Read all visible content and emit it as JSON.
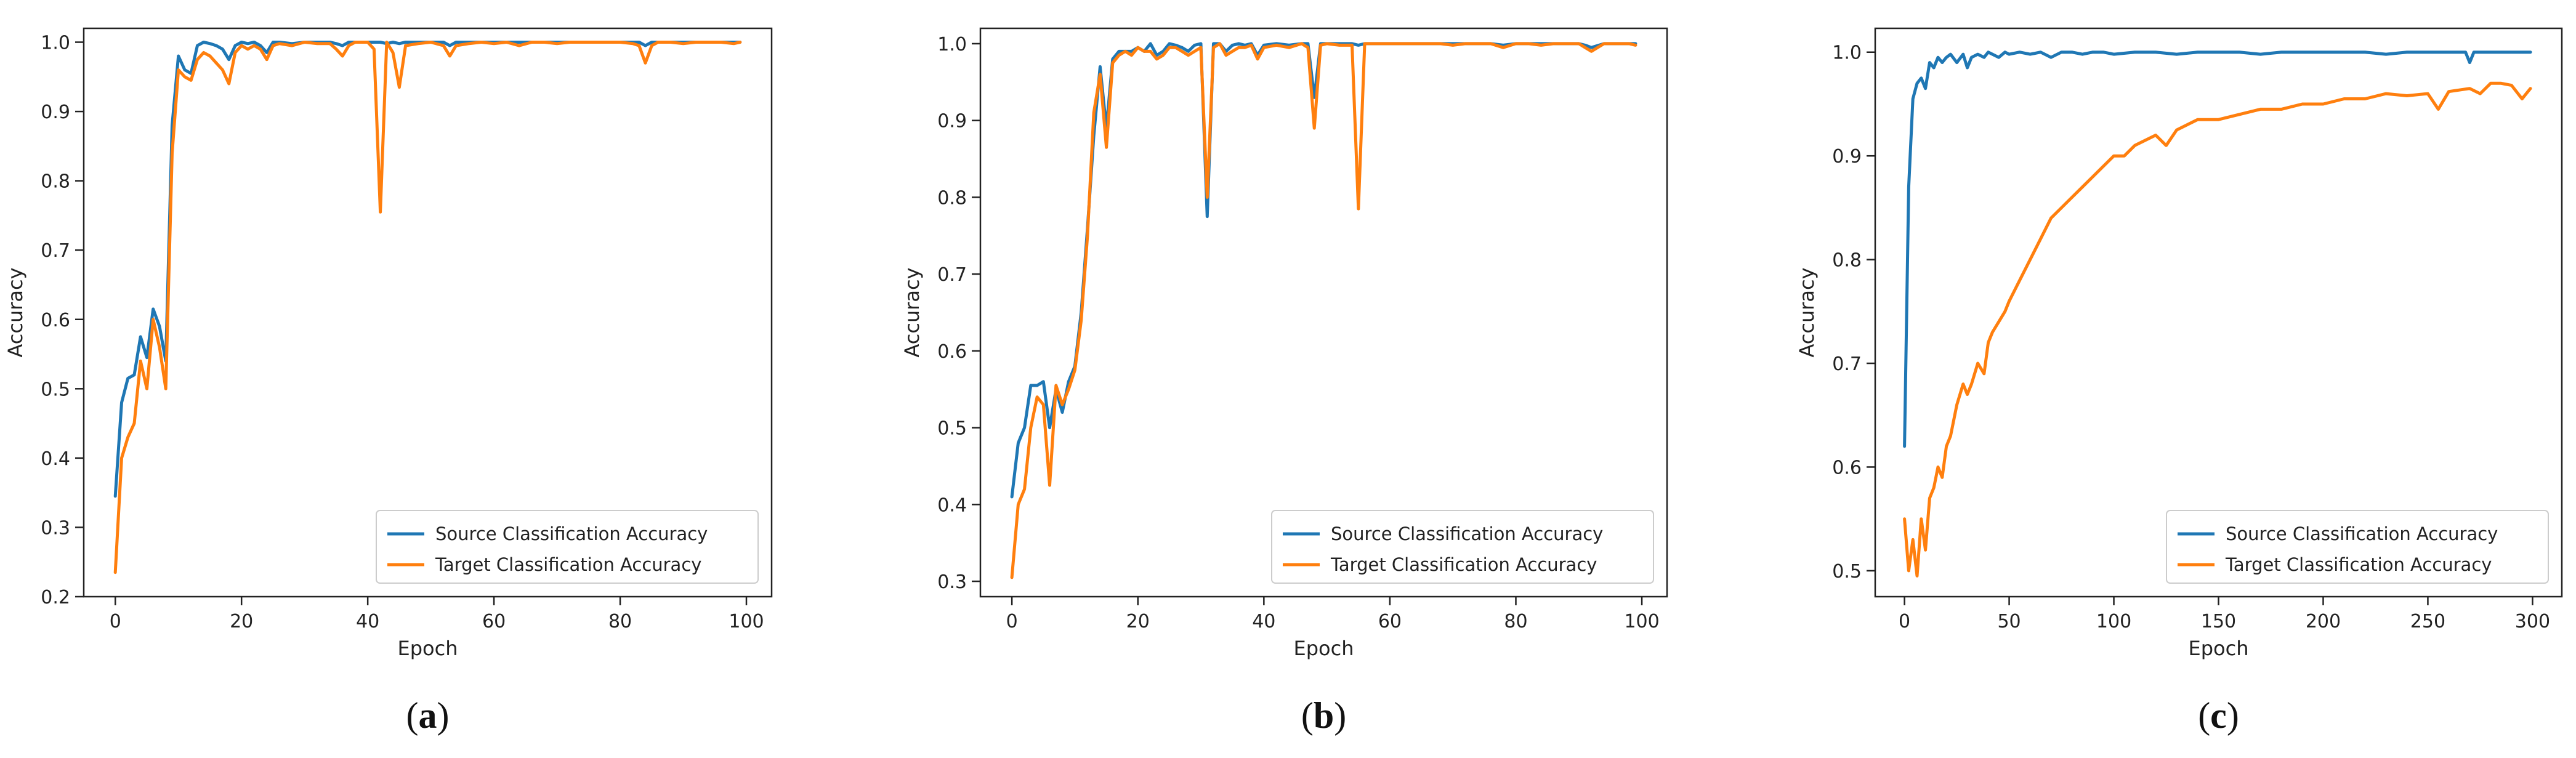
{
  "colors": {
    "source": "#1f77b4",
    "target": "#ff7f0e",
    "axis": "#222222"
  },
  "chart_data": [
    {
      "type": "line",
      "panel_label": "(a)",
      "xlabel": "Epoch",
      "ylabel": "Accuracy",
      "xlim": [
        -5,
        104
      ],
      "ylim": [
        0.2,
        1.02
      ],
      "xticks": [
        0,
        20,
        40,
        60,
        80,
        100
      ],
      "yticks": [
        0.2,
        0.3,
        0.4,
        0.5,
        0.6,
        0.7,
        0.8,
        0.9,
        1.0
      ],
      "legend_position": "bottom-right",
      "series": [
        {
          "name": "Source Classification Accuracy",
          "color": "#1f77b4",
          "x": [
            0,
            1,
            2,
            3,
            4,
            5,
            6,
            7,
            8,
            9,
            10,
            11,
            12,
            13,
            14,
            15,
            16,
            17,
            18,
            19,
            20,
            21,
            22,
            23,
            24,
            25,
            26,
            28,
            30,
            32,
            34,
            35,
            36,
            37,
            38,
            39,
            40,
            41,
            42,
            43,
            44,
            45,
            46,
            48,
            50,
            52,
            53,
            54,
            56,
            58,
            60,
            62,
            64,
            66,
            68,
            70,
            72,
            74,
            76,
            78,
            80,
            82,
            83,
            84,
            85,
            86,
            88,
            90,
            92,
            94,
            96,
            98,
            99
          ],
          "y": [
            0.345,
            0.48,
            0.515,
            0.52,
            0.575,
            0.545,
            0.615,
            0.59,
            0.54,
            0.88,
            0.98,
            0.96,
            0.955,
            0.995,
            1.0,
            0.998,
            0.995,
            0.99,
            0.975,
            0.995,
            1.0,
            0.998,
            1.0,
            0.995,
            0.985,
            1.0,
            1.0,
            0.998,
            1.0,
            1.0,
            1.0,
            0.998,
            0.995,
            1.0,
            1.0,
            1.0,
            1.0,
            1.0,
            1.0,
            0.998,
            1.0,
            0.998,
            1.0,
            1.0,
            1.0,
            1.0,
            0.995,
            1.0,
            1.0,
            1.0,
            1.0,
            1.0,
            1.0,
            1.0,
            1.0,
            1.0,
            1.0,
            1.0,
            1.0,
            1.0,
            1.0,
            1.0,
            1.0,
            0.995,
            1.0,
            1.0,
            1.0,
            1.0,
            1.0,
            1.0,
            1.0,
            1.0,
            1.0
          ]
        },
        {
          "name": "Target Classification Accuracy",
          "color": "#ff7f0e",
          "x": [
            0,
            1,
            2,
            3,
            4,
            5,
            6,
            7,
            8,
            9,
            10,
            11,
            12,
            13,
            14,
            15,
            16,
            17,
            18,
            19,
            20,
            21,
            22,
            23,
            24,
            25,
            26,
            28,
            30,
            32,
            34,
            35,
            36,
            37,
            38,
            39,
            40,
            41,
            42,
            43,
            44,
            45,
            46,
            48,
            50,
            52,
            53,
            54,
            56,
            58,
            60,
            62,
            64,
            66,
            68,
            70,
            72,
            74,
            76,
            78,
            80,
            82,
            83,
            84,
            85,
            86,
            88,
            90,
            92,
            94,
            96,
            98,
            99
          ],
          "y": [
            0.235,
            0.4,
            0.43,
            0.45,
            0.54,
            0.5,
            0.6,
            0.56,
            0.5,
            0.84,
            0.96,
            0.95,
            0.945,
            0.975,
            0.985,
            0.98,
            0.97,
            0.96,
            0.94,
            0.985,
            0.995,
            0.99,
            0.995,
            0.99,
            0.975,
            0.995,
            0.998,
            0.995,
            1.0,
            0.998,
            0.998,
            0.99,
            0.98,
            0.995,
            1.0,
            1.0,
            1.0,
            0.99,
            0.755,
            1.0,
            0.985,
            0.935,
            0.995,
            0.998,
            1.0,
            0.995,
            0.98,
            0.995,
            0.998,
            1.0,
            0.998,
            1.0,
            0.995,
            1.0,
            1.0,
            0.998,
            1.0,
            1.0,
            1.0,
            1.0,
            1.0,
            0.998,
            0.995,
            0.97,
            0.995,
            1.0,
            1.0,
            0.998,
            1.0,
            1.0,
            1.0,
            0.998,
            1.0
          ]
        }
      ]
    },
    {
      "type": "line",
      "panel_label": "(b)",
      "xlabel": "Epoch",
      "ylabel": "Accuracy",
      "xlim": [
        -5,
        104
      ],
      "ylim": [
        0.28,
        1.02
      ],
      "xticks": [
        0,
        20,
        40,
        60,
        80,
        100
      ],
      "yticks": [
        0.3,
        0.4,
        0.5,
        0.6,
        0.7,
        0.8,
        0.9,
        1.0
      ],
      "legend_position": "bottom-right",
      "series": [
        {
          "name": "Source Classification Accuracy",
          "color": "#1f77b4",
          "x": [
            0,
            1,
            2,
            3,
            4,
            5,
            6,
            7,
            8,
            9,
            10,
            11,
            12,
            13,
            14,
            15,
            16,
            17,
            18,
            19,
            20,
            21,
            22,
            23,
            24,
            25,
            26,
            27,
            28,
            29,
            30,
            31,
            32,
            33,
            34,
            35,
            36,
            37,
            38,
            39,
            40,
            42,
            44,
            46,
            47,
            48,
            49,
            50,
            52,
            54,
            55,
            56,
            58,
            60,
            62,
            64,
            66,
            68,
            70,
            72,
            74,
            76,
            78,
            80,
            82,
            84,
            86,
            88,
            90,
            91,
            92,
            94,
            96,
            98,
            99
          ],
          "y": [
            0.41,
            0.48,
            0.5,
            0.555,
            0.555,
            0.56,
            0.5,
            0.55,
            0.52,
            0.56,
            0.58,
            0.65,
            0.76,
            0.88,
            0.97,
            0.89,
            0.98,
            0.99,
            0.99,
            0.99,
            0.995,
            0.99,
            1.0,
            0.985,
            0.99,
            1.0,
            0.998,
            0.995,
            0.99,
            0.998,
            1.0,
            0.775,
            1.0,
            1.0,
            0.99,
            0.998,
            1.0,
            0.998,
            1.0,
            0.985,
            0.998,
            1.0,
            0.998,
            1.0,
            1.0,
            0.93,
            1.0,
            1.0,
            1.0,
            1.0,
            0.998,
            1.0,
            1.0,
            1.0,
            1.0,
            1.0,
            1.0,
            1.0,
            1.0,
            1.0,
            1.0,
            1.0,
            0.998,
            1.0,
            1.0,
            1.0,
            1.0,
            1.0,
            1.0,
            0.998,
            0.995,
            1.0,
            1.0,
            1.0,
            1.0
          ]
        },
        {
          "name": "Target Classification Accuracy",
          "color": "#ff7f0e",
          "x": [
            0,
            1,
            2,
            3,
            4,
            5,
            6,
            7,
            8,
            9,
            10,
            11,
            12,
            13,
            14,
            15,
            16,
            17,
            18,
            19,
            20,
            21,
            22,
            23,
            24,
            25,
            26,
            27,
            28,
            29,
            30,
            31,
            32,
            33,
            34,
            35,
            36,
            37,
            38,
            39,
            40,
            42,
            44,
            46,
            47,
            48,
            49,
            50,
            52,
            54,
            55,
            56,
            58,
            60,
            62,
            64,
            66,
            68,
            70,
            72,
            74,
            76,
            78,
            80,
            82,
            84,
            86,
            88,
            90,
            91,
            92,
            94,
            96,
            98,
            99
          ],
          "y": [
            0.305,
            0.4,
            0.42,
            0.5,
            0.54,
            0.53,
            0.425,
            0.555,
            0.53,
            0.55,
            0.575,
            0.64,
            0.75,
            0.91,
            0.96,
            0.865,
            0.975,
            0.985,
            0.99,
            0.985,
            0.995,
            0.99,
            0.99,
            0.98,
            0.985,
            0.995,
            0.995,
            0.99,
            0.985,
            0.99,
            0.995,
            0.8,
            0.995,
            1.0,
            0.985,
            0.99,
            0.995,
            0.995,
            0.998,
            0.98,
            0.995,
            0.998,
            0.995,
            1.0,
            0.995,
            0.89,
            0.998,
            1.0,
            0.998,
            0.998,
            0.785,
            1.0,
            1.0,
            1.0,
            1.0,
            1.0,
            1.0,
            1.0,
            0.998,
            1.0,
            1.0,
            1.0,
            0.995,
            1.0,
            1.0,
            0.998,
            1.0,
            1.0,
            1.0,
            0.995,
            0.99,
            1.0,
            1.0,
            1.0,
            0.998
          ]
        }
      ]
    },
    {
      "type": "line",
      "panel_label": "(c)",
      "xlabel": "Epoch",
      "ylabel": "Accuracy",
      "xlim": [
        -14,
        314
      ],
      "ylim": [
        0.475,
        1.023
      ],
      "xticks": [
        0,
        50,
        100,
        150,
        200,
        250,
        300
      ],
      "yticks": [
        0.5,
        0.6,
        0.7,
        0.8,
        0.9,
        1.0
      ],
      "legend_position": "bottom-right",
      "series": [
        {
          "name": "Source Classification Accuracy",
          "color": "#1f77b4",
          "x": [
            0,
            2,
            4,
            6,
            8,
            10,
            12,
            14,
            16,
            18,
            20,
            22,
            25,
            28,
            30,
            32,
            35,
            38,
            40,
            42,
            45,
            48,
            50,
            55,
            60,
            65,
            70,
            75,
            80,
            85,
            90,
            95,
            100,
            110,
            120,
            130,
            140,
            150,
            160,
            170,
            180,
            190,
            200,
            210,
            220,
            230,
            240,
            250,
            260,
            268,
            270,
            272,
            280,
            290,
            299
          ],
          "y": [
            0.62,
            0.87,
            0.955,
            0.97,
            0.975,
            0.965,
            0.99,
            0.985,
            0.995,
            0.99,
            0.995,
            0.998,
            0.99,
            0.998,
            0.985,
            0.995,
            0.998,
            0.995,
            1.0,
            0.998,
            0.995,
            1.0,
            0.998,
            1.0,
            0.998,
            1.0,
            0.995,
            1.0,
            1.0,
            0.998,
            1.0,
            1.0,
            0.998,
            1.0,
            1.0,
            0.998,
            1.0,
            1.0,
            1.0,
            0.998,
            1.0,
            1.0,
            1.0,
            1.0,
            1.0,
            0.998,
            1.0,
            1.0,
            1.0,
            1.0,
            0.99,
            1.0,
            1.0,
            1.0,
            1.0
          ]
        },
        {
          "name": "Target Classification Accuracy",
          "color": "#ff7f0e",
          "x": [
            0,
            2,
            4,
            6,
            8,
            10,
            12,
            14,
            16,
            18,
            20,
            22,
            25,
            28,
            30,
            32,
            35,
            38,
            40,
            42,
            45,
            48,
            50,
            55,
            60,
            65,
            70,
            75,
            80,
            85,
            90,
            95,
            100,
            105,
            110,
            115,
            120,
            125,
            130,
            140,
            150,
            160,
            170,
            180,
            190,
            200,
            210,
            220,
            230,
            240,
            250,
            255,
            260,
            270,
            275,
            280,
            285,
            290,
            295,
            299
          ],
          "y": [
            0.55,
            0.5,
            0.53,
            0.495,
            0.55,
            0.52,
            0.57,
            0.58,
            0.6,
            0.59,
            0.62,
            0.63,
            0.66,
            0.68,
            0.67,
            0.68,
            0.7,
            0.69,
            0.72,
            0.73,
            0.74,
            0.75,
            0.76,
            0.78,
            0.8,
            0.82,
            0.84,
            0.85,
            0.86,
            0.87,
            0.88,
            0.89,
            0.9,
            0.9,
            0.91,
            0.915,
            0.92,
            0.91,
            0.925,
            0.935,
            0.935,
            0.94,
            0.945,
            0.945,
            0.95,
            0.95,
            0.955,
            0.955,
            0.96,
            0.958,
            0.96,
            0.945,
            0.962,
            0.965,
            0.96,
            0.97,
            0.97,
            0.968,
            0.955,
            0.965
          ]
        }
      ]
    }
  ]
}
